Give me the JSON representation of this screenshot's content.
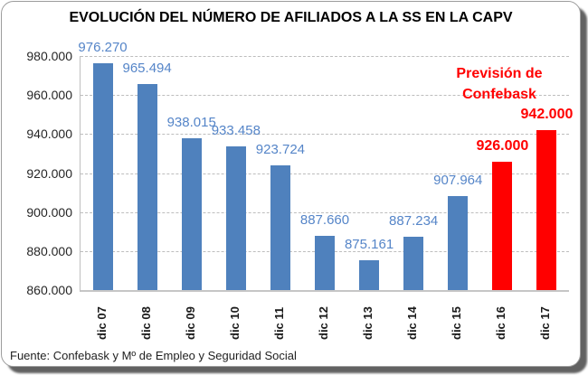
{
  "title": "EVOLUCIÓN DEL NÚMERO DE AFILIADOS A LA SS EN LA CAPV",
  "source_note": "Fuente: Confebask y Mº de Empleo y Seguridad Social",
  "annotation": {
    "line1": "Previsión de",
    "line2": "Confebask"
  },
  "colors": {
    "bar_blue": "#4F81BD",
    "bar_red": "#FF0000",
    "label_blue": "#5585C8",
    "label_red": "#FF0000",
    "gridline": "#BDBDBD",
    "axis_line": "#C6C6C6",
    "title_text": "#000000",
    "annotation_text": "#FF0000"
  },
  "chart_data": {
    "type": "bar",
    "title": "EVOLUCIÓN DEL NÚMERO DE AFILIADOS A LA SS EN LA CAPV",
    "categories": [
      "dic 07",
      "dic 08",
      "dic 09",
      "dic 10",
      "dic 11",
      "dic 12",
      "dic 13",
      "dic 14",
      "dic 15",
      "dic 16",
      "dic 17"
    ],
    "values": [
      976270,
      965494,
      938015,
      933458,
      923724,
      887660,
      875161,
      887234,
      907964,
      926000,
      942000
    ],
    "value_labels": [
      "976.270",
      "965.494",
      "938.015",
      "933.458",
      "923.724",
      "887.660",
      "875.161",
      "887.234",
      "907.964",
      "926.000",
      "942.000"
    ],
    "bar_colors": [
      "blue",
      "blue",
      "blue",
      "blue",
      "blue",
      "blue",
      "blue",
      "blue",
      "blue",
      "red",
      "red"
    ],
    "red_bars_meaning": "Previsión de Confebask",
    "ylim": [
      860000,
      980000
    ],
    "ytick_values": [
      980000,
      960000,
      940000,
      920000,
      900000,
      880000,
      860000
    ],
    "ytick_labels": [
      "980.000",
      "960.000",
      "940.000",
      "920.000",
      "900.000",
      "880.000",
      "860.000"
    ],
    "grid": "horizontal dashed",
    "legend": "none",
    "xlabel": "",
    "ylabel": ""
  }
}
